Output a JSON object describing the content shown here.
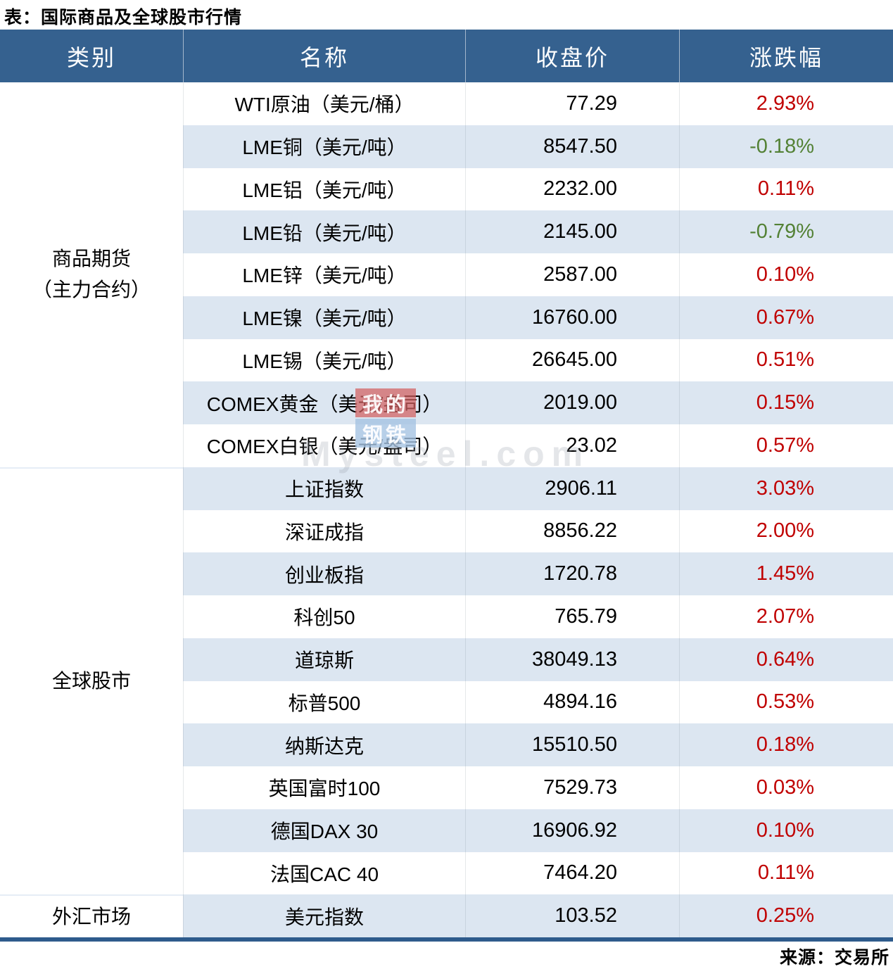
{
  "chart_data": {
    "type": "table",
    "title": "表：国际商品及全球股市行情",
    "source": "来源：交易所",
    "columns": [
      "类别",
      "名称",
      "收盘价",
      "涨跌幅"
    ],
    "sections": [
      {
        "category_lines": [
          "商品期货",
          "（主力合约）"
        ],
        "rows": [
          {
            "name": "WTI原油（美元/桶）",
            "close": "77.29",
            "change": "2.93%"
          },
          {
            "name": "LME铜（美元/吨）",
            "close": "8547.50",
            "change": "-0.18%"
          },
          {
            "name": "LME铝（美元/吨）",
            "close": "2232.00",
            "change": "0.11%"
          },
          {
            "name": "LME铅（美元/吨）",
            "close": "2145.00",
            "change": "-0.79%"
          },
          {
            "name": "LME锌（美元/吨）",
            "close": "2587.00",
            "change": "0.10%"
          },
          {
            "name": "LME镍（美元/吨）",
            "close": "16760.00",
            "change": "0.67%"
          },
          {
            "name": "LME锡（美元/吨）",
            "close": "26645.00",
            "change": "0.51%"
          },
          {
            "name": "COMEX黄金（美元/盎司）",
            "close": "2019.00",
            "change": "0.15%"
          },
          {
            "name": "COMEX白银（美元/盎司）",
            "close": "23.02",
            "change": "0.57%"
          }
        ]
      },
      {
        "category_lines": [
          "全球股市"
        ],
        "rows": [
          {
            "name": "上证指数",
            "close": "2906.11",
            "change": "3.03%"
          },
          {
            "name": "深证成指",
            "close": "8856.22",
            "change": "2.00%"
          },
          {
            "name": "创业板指",
            "close": "1720.78",
            "change": "1.45%"
          },
          {
            "name": "科创50",
            "close": "765.79",
            "change": "2.07%"
          },
          {
            "name": "道琼斯",
            "close": "38049.13",
            "change": "0.64%"
          },
          {
            "name": "标普500",
            "close": "4894.16",
            "change": "0.53%"
          },
          {
            "name": "纳斯达克",
            "close": "15510.50",
            "change": "0.18%"
          },
          {
            "name": "英国富时100",
            "close": "7529.73",
            "change": "0.03%"
          },
          {
            "name": "德国DAX 30",
            "close": "16906.92",
            "change": "0.10%"
          },
          {
            "name": "法国CAC 40",
            "close": "7464.20",
            "change": "0.11%"
          }
        ]
      },
      {
        "category_lines": [
          "外汇市场"
        ],
        "rows": [
          {
            "name": "美元指数",
            "close": "103.52",
            "change": "0.25%"
          }
        ]
      }
    ]
  },
  "watermark": {
    "logo_top": "我的",
    "logo_bottom": "钢铁",
    "text": "Mysteel.com"
  },
  "colors": {
    "header_bg": "#35618F",
    "stripe_bg": "#DCE6F1",
    "up_red": "#C00000",
    "down_green": "#538135",
    "bottom_rule": "#2E5B8C"
  }
}
